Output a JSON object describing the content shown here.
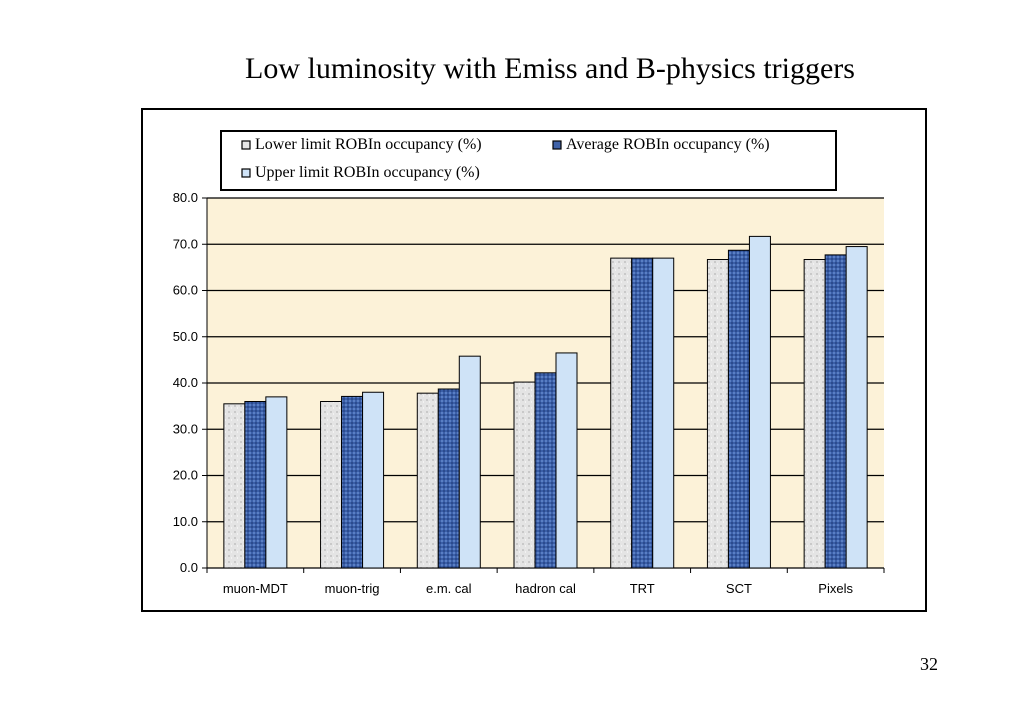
{
  "slide": {
    "title": "Low luminosity with Emiss and B-physics triggers",
    "page_number": "32"
  },
  "colors": {
    "plot_background": "#fcf2d8",
    "lower_fill": "#e6e6e6",
    "average_fill": "#3f62a8",
    "upper_fill": "#cfe3f7",
    "bar_stroke": "#000000",
    "grid": "#000000"
  },
  "chart_data": {
    "type": "bar",
    "title": "",
    "xlabel": "",
    "ylabel": "",
    "categories": [
      "muon-MDT",
      "muon-trig",
      "e.m. cal",
      "hadron cal",
      "TRT",
      "SCT",
      "Pixels"
    ],
    "series": [
      {
        "name": "Lower limit ROBIn occupancy (%)",
        "values": [
          35.5,
          36.0,
          37.8,
          40.2,
          67.0,
          66.7,
          66.7
        ]
      },
      {
        "name": "Average ROBIn occupancy (%)",
        "values": [
          36.0,
          37.1,
          38.7,
          42.2,
          67.0,
          68.7,
          67.7
        ]
      },
      {
        "name": "Upper limit ROBIn occupancy (%)",
        "values": [
          37.0,
          38.0,
          45.8,
          46.5,
          67.0,
          71.7,
          69.5
        ]
      }
    ],
    "ylim": [
      0,
      80
    ],
    "yticks": [
      "0.0",
      "10.0",
      "20.0",
      "30.0",
      "40.0",
      "50.0",
      "60.0",
      "70.0",
      "80.0"
    ],
    "grid": true,
    "legend_position": "top"
  }
}
